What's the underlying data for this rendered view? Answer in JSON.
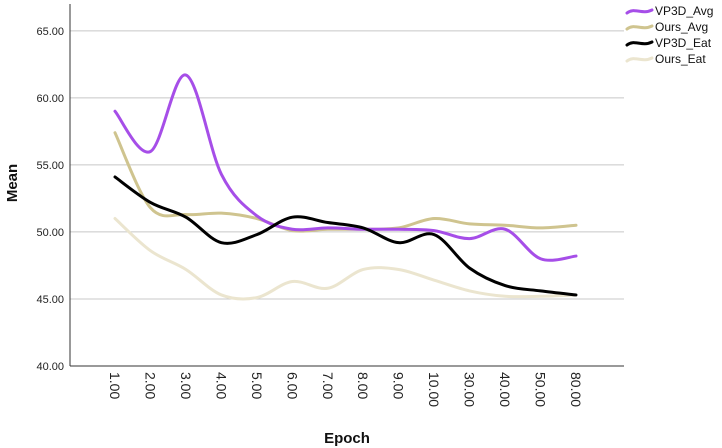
{
  "chart_data": {
    "type": "line",
    "xlabel": "Epoch",
    "ylabel": "Mean",
    "categories": [
      "1.00",
      "2.00",
      "3.00",
      "4.00",
      "5.00",
      "6.00",
      "7.00",
      "8.00",
      "9.00",
      "10.00",
      "30.00",
      "40.00",
      "50.00",
      "80.00"
    ],
    "y_ticks": [
      "40.00",
      "45.00",
      "50.00",
      "55.00",
      "60.00",
      "65.00"
    ],
    "ylim": [
      40,
      67
    ],
    "grid": "horizontal",
    "legend_position": "top-right",
    "series": [
      {
        "name": "VP3D_Avg",
        "color": "#a64ee8",
        "values": [
          59.0,
          56.0,
          61.7,
          54.3,
          51.2,
          50.2,
          50.3,
          50.2,
          50.2,
          50.1,
          49.5,
          50.2,
          48.0,
          48.2
        ]
      },
      {
        "name": "Ours_Avg",
        "color": "#cfc48f",
        "values": [
          57.4,
          51.8,
          51.3,
          51.4,
          51.0,
          50.1,
          50.2,
          50.2,
          50.3,
          51.0,
          50.6,
          50.5,
          50.3,
          50.5
        ]
      },
      {
        "name": "VP3D_Eat",
        "color": "#000000",
        "values": [
          54.1,
          52.2,
          51.1,
          49.2,
          49.8,
          51.1,
          50.7,
          50.3,
          49.2,
          49.8,
          47.3,
          46.0,
          45.6,
          45.3
        ]
      },
      {
        "name": "Ours_Eat",
        "color": "#ebe5cf",
        "values": [
          51.0,
          48.6,
          47.2,
          45.3,
          45.1,
          46.3,
          45.8,
          47.2,
          47.2,
          46.4,
          45.6,
          45.2,
          45.2,
          45.3
        ]
      }
    ]
  }
}
